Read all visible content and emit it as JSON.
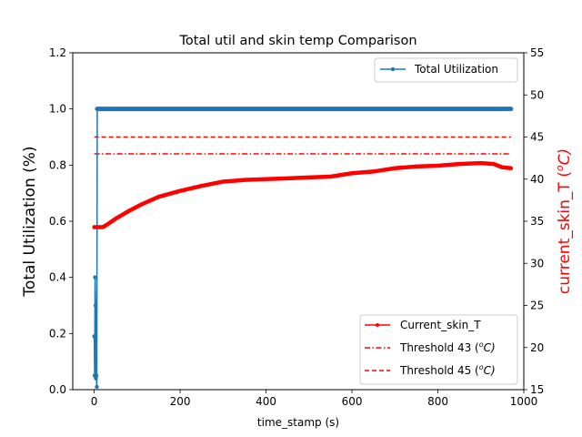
{
  "chart_data": {
    "type": "line",
    "title": "Total util and skin temp Comparison",
    "xlabel": "time_stamp (s)",
    "ylabel_left": "Total Utilization (%)",
    "ylabel_right_main": "current_skin_T (",
    "ylabel_right_sup": "o",
    "ylabel_right_unit": "C)",
    "xlim": [
      -50,
      1000
    ],
    "ylim_left": [
      0,
      1.2
    ],
    "ylim_right": [
      15,
      55
    ],
    "xticks": [
      0,
      200,
      400,
      600,
      800,
      1000
    ],
    "xtick_labels": [
      "0",
      "200",
      "400",
      "600",
      "800",
      "1000"
    ],
    "yticks_left": [
      0.0,
      0.2,
      0.4,
      0.6,
      0.8,
      1.0,
      1.2
    ],
    "ytick_labels_left": [
      "0.0",
      "0.2",
      "0.4",
      "0.6",
      "0.8",
      "1.0",
      "1.2"
    ],
    "yticks_right": [
      15,
      20,
      25,
      30,
      35,
      40,
      45,
      50,
      55
    ],
    "ytick_labels_right": [
      "15",
      "20",
      "25",
      "30",
      "35",
      "40",
      "45",
      "50",
      "55"
    ],
    "grid": false,
    "legend_left_axis": {
      "placement": "upper-right",
      "entry": "Total Utilization",
      "color": "#1f77b4"
    },
    "legend_right_axis": {
      "placement": "lower-right",
      "entries": [
        {
          "label": "Current_skin_T",
          "color": "#ff0000",
          "style": "solid-marker"
        },
        {
          "label_main": "Threshold 43 (",
          "label_sup": "o",
          "label_unit": "C)",
          "color": "#ff0000",
          "style": "dashdot"
        },
        {
          "label_main": "Threshold 45 (",
          "label_sup": "o",
          "label_unit": "C)",
          "color": "#ff0000",
          "style": "dashed"
        }
      ]
    },
    "series": [
      {
        "name": "Total Utilization",
        "axis": "left",
        "color": "#1f77b4",
        "x": [
          0,
          1,
          2,
          3,
          4,
          5,
          6,
          7,
          8,
          9,
          10,
          970
        ],
        "y": [
          0.19,
          0.05,
          0.4,
          0.3,
          0.04,
          0.05,
          0.01,
          1.0,
          1.0,
          1.0,
          1.0,
          1.0
        ]
      },
      {
        "name": "Current_skin_T",
        "axis": "right",
        "color": "#ff0000",
        "x": [
          0,
          20,
          30,
          50,
          80,
          110,
          150,
          200,
          250,
          300,
          350,
          400,
          450,
          500,
          550,
          600,
          650,
          700,
          750,
          800,
          850,
          900,
          930,
          950,
          970
        ],
        "y": [
          34.3,
          34.3,
          34.6,
          35.3,
          36.2,
          37.0,
          37.9,
          38.6,
          39.2,
          39.7,
          39.9,
          40.0,
          40.1,
          40.2,
          40.3,
          40.7,
          40.9,
          41.3,
          41.5,
          41.6,
          41.8,
          41.9,
          41.8,
          41.4,
          41.3
        ]
      },
      {
        "name": "Threshold 43",
        "axis": "right",
        "color": "#ff0000",
        "x": [
          0,
          970
        ],
        "y": [
          43,
          43
        ]
      },
      {
        "name": "Threshold 45",
        "axis": "right",
        "color": "#ff0000",
        "x": [
          0,
          970
        ],
        "y": [
          45,
          45
        ]
      }
    ]
  }
}
